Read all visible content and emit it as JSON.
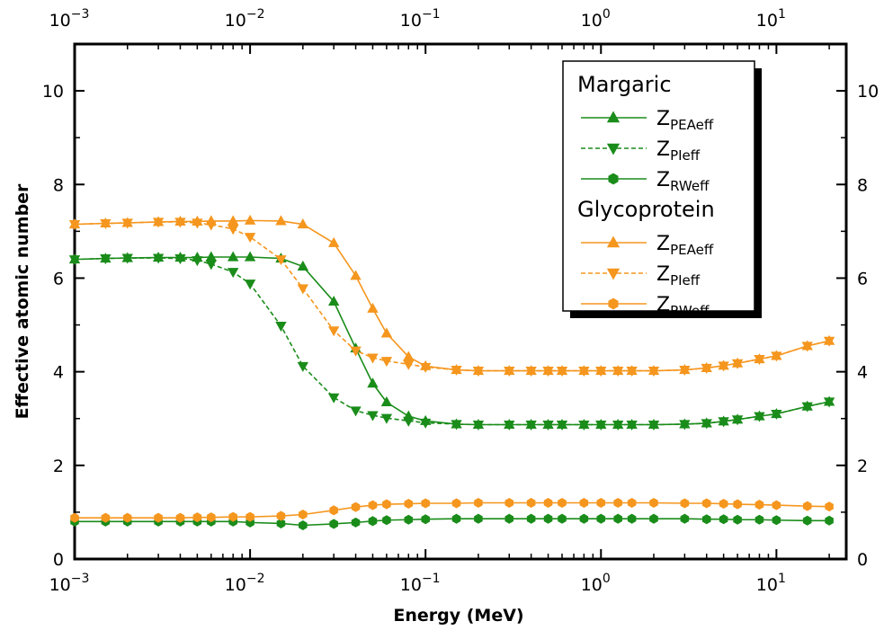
{
  "chart_data": {
    "type": "line",
    "title": "",
    "xlabel": "Energy (MeV)",
    "ylabel": "Effective atomic number",
    "xscale": "log",
    "xlim": [
      0.001,
      25
    ],
    "ylim": [
      0,
      11
    ],
    "x_ticks": [
      {
        "value": 0.001,
        "base": "10",
        "exp": "−3"
      },
      {
        "value": 0.01,
        "base": "10",
        "exp": "−2"
      },
      {
        "value": 0.1,
        "base": "10",
        "exp": "−1"
      },
      {
        "value": 1,
        "base": "10",
        "exp": "0"
      },
      {
        "value": 10,
        "base": "10",
        "exp": "1"
      }
    ],
    "y_ticks": [
      {
        "value": 0,
        "label": "0"
      },
      {
        "value": 2,
        "label": "2"
      },
      {
        "value": 4,
        "label": "4"
      },
      {
        "value": 6,
        "label": "6"
      },
      {
        "value": 8,
        "label": "8"
      },
      {
        "value": 10,
        "label": "10"
      }
    ],
    "legend": {
      "position": "top-right",
      "groups": [
        {
          "title": "Margaric",
          "entries": [
            {
              "label": "Z",
              "sub": "PEAeff",
              "series": 0
            },
            {
              "label": "Z",
              "sub": "PIeff",
              "series": 1
            },
            {
              "label": "Z",
              "sub": "RWeff",
              "series": 2
            }
          ]
        },
        {
          "title": "Glycoprotein",
          "entries": [
            {
              "label": "Z",
              "sub": "PEAeff",
              "series": 3
            },
            {
              "label": "Z",
              "sub": "PIeff",
              "series": 4
            },
            {
              "label": "Z",
              "sub": "RWeff",
              "series": 5
            }
          ]
        }
      ]
    },
    "series": [
      {
        "name": "Margaric Z_PEAeff",
        "color": "#1a8c1a",
        "marker": "triangle-up",
        "dash": "solid",
        "x": [
          0.001,
          0.0015,
          0.002,
          0.003,
          0.004,
          0.005,
          0.006,
          0.008,
          0.01,
          0.015,
          0.02,
          0.03,
          0.04,
          0.05,
          0.06,
          0.08,
          0.1,
          0.15,
          0.2,
          0.3,
          0.4,
          0.5,
          0.6,
          0.8,
          1,
          1.25,
          1.5,
          2,
          3,
          4,
          5,
          6,
          8,
          10,
          15,
          20
        ],
        "y": [
          6.4,
          6.42,
          6.43,
          6.44,
          6.44,
          6.44,
          6.45,
          6.45,
          6.45,
          6.42,
          6.25,
          5.5,
          4.5,
          3.75,
          3.35,
          3.05,
          2.95,
          2.88,
          2.87,
          2.87,
          2.87,
          2.87,
          2.87,
          2.87,
          2.87,
          2.87,
          2.87,
          2.87,
          2.88,
          2.9,
          2.94,
          2.98,
          3.05,
          3.1,
          3.26,
          3.36
        ]
      },
      {
        "name": "Margaric Z_PIeff",
        "color": "#1a8c1a",
        "marker": "triangle-down",
        "dash": "dashed",
        "x": [
          0.001,
          0.0015,
          0.002,
          0.003,
          0.004,
          0.005,
          0.006,
          0.008,
          0.01,
          0.015,
          0.02,
          0.03,
          0.04,
          0.05,
          0.06,
          0.08,
          0.1,
          0.15,
          0.2,
          0.3,
          0.4,
          0.5,
          0.6,
          0.8,
          1,
          1.25,
          1.5,
          2,
          3,
          4,
          5,
          6,
          8,
          10,
          15,
          20
        ],
        "y": [
          6.4,
          6.42,
          6.43,
          6.43,
          6.42,
          6.38,
          6.3,
          6.13,
          5.88,
          4.98,
          4.12,
          3.45,
          3.17,
          3.07,
          3.01,
          2.95,
          2.91,
          2.88,
          2.87,
          2.87,
          2.87,
          2.87,
          2.87,
          2.87,
          2.87,
          2.87,
          2.87,
          2.87,
          2.88,
          2.9,
          2.94,
          2.98,
          3.05,
          3.1,
          3.26,
          3.36
        ]
      },
      {
        "name": "Margaric Z_RWeff",
        "color": "#1a8c1a",
        "marker": "hexagon",
        "dash": "solid",
        "x": [
          0.001,
          0.0015,
          0.002,
          0.003,
          0.004,
          0.005,
          0.006,
          0.008,
          0.01,
          0.015,
          0.02,
          0.03,
          0.04,
          0.05,
          0.06,
          0.08,
          0.1,
          0.15,
          0.2,
          0.3,
          0.4,
          0.5,
          0.6,
          0.8,
          1,
          1.25,
          1.5,
          2,
          3,
          4,
          5,
          6,
          8,
          10,
          15,
          20
        ],
        "y": [
          0.8,
          0.8,
          0.8,
          0.8,
          0.8,
          0.8,
          0.8,
          0.8,
          0.78,
          0.76,
          0.72,
          0.75,
          0.78,
          0.81,
          0.83,
          0.84,
          0.85,
          0.86,
          0.86,
          0.86,
          0.86,
          0.86,
          0.86,
          0.86,
          0.86,
          0.86,
          0.86,
          0.86,
          0.86,
          0.85,
          0.85,
          0.84,
          0.84,
          0.83,
          0.82,
          0.82
        ]
      },
      {
        "name": "Glycoprotein Z_PEAeff",
        "color": "#f5961e",
        "marker": "triangle-up",
        "dash": "solid",
        "x": [
          0.001,
          0.0015,
          0.002,
          0.003,
          0.004,
          0.005,
          0.006,
          0.008,
          0.01,
          0.015,
          0.02,
          0.03,
          0.04,
          0.05,
          0.06,
          0.08,
          0.1,
          0.15,
          0.2,
          0.3,
          0.4,
          0.5,
          0.6,
          0.8,
          1,
          1.25,
          1.5,
          2,
          3,
          4,
          5,
          6,
          8,
          10,
          15,
          20
        ],
        "y": [
          7.15,
          7.17,
          7.18,
          7.2,
          7.21,
          7.21,
          7.22,
          7.22,
          7.23,
          7.22,
          7.15,
          6.75,
          6.05,
          5.35,
          4.82,
          4.32,
          4.12,
          4.04,
          4.02,
          4.02,
          4.02,
          4.02,
          4.02,
          4.02,
          4.02,
          4.02,
          4.02,
          4.02,
          4.04,
          4.08,
          4.13,
          4.18,
          4.27,
          4.34,
          4.55,
          4.66
        ]
      },
      {
        "name": "Glycoprotein Z_PIeff",
        "color": "#f5961e",
        "marker": "triangle-down",
        "dash": "dashed",
        "x": [
          0.001,
          0.0015,
          0.002,
          0.003,
          0.004,
          0.005,
          0.006,
          0.008,
          0.01,
          0.015,
          0.02,
          0.03,
          0.04,
          0.05,
          0.06,
          0.08,
          0.1,
          0.15,
          0.2,
          0.3,
          0.4,
          0.5,
          0.6,
          0.8,
          1,
          1.25,
          1.5,
          2,
          3,
          4,
          5,
          6,
          8,
          10,
          15,
          20
        ],
        "y": [
          7.15,
          7.17,
          7.18,
          7.2,
          7.2,
          7.18,
          7.14,
          7.05,
          6.88,
          6.4,
          5.78,
          4.88,
          4.45,
          4.3,
          4.23,
          4.16,
          4.1,
          4.04,
          4.02,
          4.02,
          4.02,
          4.02,
          4.02,
          4.02,
          4.02,
          4.02,
          4.02,
          4.02,
          4.04,
          4.08,
          4.13,
          4.18,
          4.27,
          4.34,
          4.55,
          4.66
        ]
      },
      {
        "name": "Glycoprotein Z_RWeff",
        "color": "#f5961e",
        "marker": "hexagon",
        "dash": "solid",
        "x": [
          0.001,
          0.0015,
          0.002,
          0.003,
          0.004,
          0.005,
          0.006,
          0.008,
          0.01,
          0.015,
          0.02,
          0.03,
          0.04,
          0.05,
          0.06,
          0.08,
          0.1,
          0.15,
          0.2,
          0.3,
          0.4,
          0.5,
          0.6,
          0.8,
          1,
          1.25,
          1.5,
          2,
          3,
          4,
          5,
          6,
          8,
          10,
          15,
          20
        ],
        "y": [
          0.88,
          0.88,
          0.88,
          0.88,
          0.88,
          0.89,
          0.89,
          0.9,
          0.9,
          0.92,
          0.95,
          1.04,
          1.11,
          1.15,
          1.17,
          1.18,
          1.19,
          1.19,
          1.2,
          1.2,
          1.2,
          1.2,
          1.2,
          1.2,
          1.2,
          1.2,
          1.2,
          1.2,
          1.19,
          1.19,
          1.18,
          1.17,
          1.16,
          1.15,
          1.13,
          1.12
        ]
      }
    ]
  }
}
